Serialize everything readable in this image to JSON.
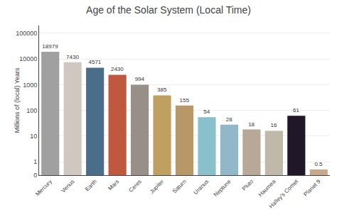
{
  "chart_data": {
    "type": "bar",
    "title": "Age of the Solar System (Local Time)",
    "ylabel": "Millions of (local) Years",
    "categories": [
      "Mercury",
      "Venus",
      "Earth",
      "Mars",
      "Ceres",
      "Jupiter",
      "Saturn",
      "Uranus",
      "Neptune",
      "Pluto",
      "Haumea",
      "Halley's Comet",
      "Planet 9"
    ],
    "values": [
      18979,
      7430,
      4571,
      2430,
      994,
      385,
      155,
      54,
      28,
      18,
      16,
      61,
      0.5
    ],
    "colors": [
      "#a0a0a0",
      "#d0c8c0",
      "#4a6e8a",
      "#c05840",
      "#989088",
      "#c0a060",
      "#b89868",
      "#88c0cc",
      "#90b8c8",
      "#b8a898",
      "#c0b8a8",
      "#201828",
      "#c8a888"
    ],
    "log": "y",
    "ylim": [
      0.3,
      200000
    ],
    "yticks": [
      {
        "value": 0.3,
        "label": "0"
      },
      1,
      10,
      100,
      1000,
      10000,
      100000
    ],
    "grid": true,
    "data_labels": true
  }
}
